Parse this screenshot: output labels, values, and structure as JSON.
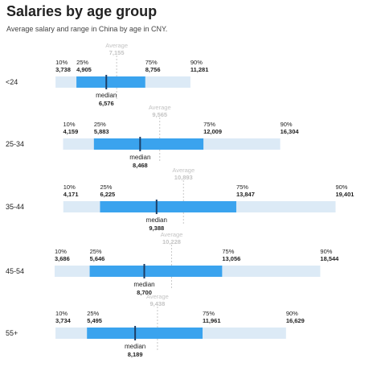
{
  "title": "Salaries by age group",
  "subtitle": "Average salary and range in China by age in CNY.",
  "labels": {
    "p10": "10%",
    "p25": "25%",
    "p75": "75%",
    "p90": "90%",
    "median": "median",
    "average": "Average"
  },
  "colors": {
    "outer_range": "#dceaf6",
    "inner_range": "#3aa3ee",
    "median_line": "#1c3e66",
    "average_line": "#c8c8c8",
    "average_text": "#c4c4c4",
    "text": "#222222"
  },
  "chart_data": {
    "type": "range",
    "title": "Salaries by age group",
    "subtitle": "Average salary and range in China by age in CNY.",
    "categories": [
      "<24",
      "25-34",
      "35-44",
      "45-54",
      "55+"
    ],
    "rows": [
      {
        "age": "<24",
        "p10": "3,738",
        "p25": "4,905",
        "median": "6,576",
        "average": "7,155",
        "p75": "8,756",
        "p90": "11,281"
      },
      {
        "age": "25-34",
        "p10": "4,159",
        "p25": "5,883",
        "median": "8,468",
        "average": "9,565",
        "p75": "12,009",
        "p90": "16,304"
      },
      {
        "age": "35-44",
        "p10": "4,171",
        "p25": "6,225",
        "median": "9,388",
        "average": "10,893",
        "p75": "13,847",
        "p90": "19,401"
      },
      {
        "age": "45-54",
        "p10": "3,686",
        "p25": "5,646",
        "median": "8,700",
        "average": "10,228",
        "p75": "13,056",
        "p90": "18,544"
      },
      {
        "age": "55+",
        "p10": "3,734",
        "p25": "5,495",
        "median": "8,189",
        "average": "9,438",
        "p75": "11,961",
        "p90": "16,629"
      }
    ]
  }
}
